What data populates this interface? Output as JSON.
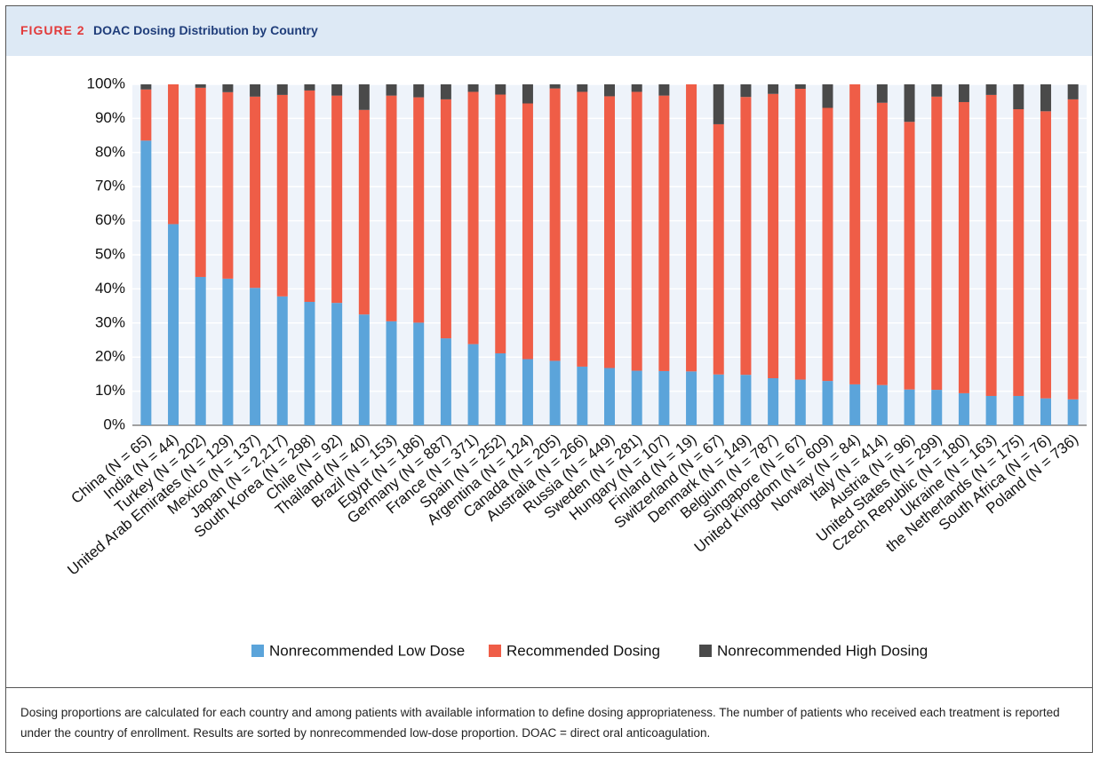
{
  "header": {
    "label": "FIGURE 2"
  },
  "chart_data": {
    "type": "stacked_bar",
    "title": "DOAC Dosing Distribution by Country",
    "categories": [
      "China (N = 65)",
      "India (N = 44)",
      "Turkey (N = 202)",
      "United Arab Emirates (N = 129)",
      "Mexico (N = 137)",
      "Japan (N = 2,217)",
      "South Korea (N = 298)",
      "Chile (N = 92)",
      "Thailand (N = 40)",
      "Brazil (N = 153)",
      "Egypt (N = 186)",
      "Germany (N = 887)",
      "France (N = 371)",
      "Spain (N = 252)",
      "Argentina (N = 124)",
      "Canada (N = 205)",
      "Australia (N = 266)",
      "Russia (N = 449)",
      "Sweden (N = 281)",
      "Hungary (N = 107)",
      "Finland (N = 19)",
      "Switzerland (N = 67)",
      "Denmark (N = 149)",
      "Belgium (N = 787)",
      "Singapore (N = 67)",
      "United Kingdom (N = 609)",
      "Norway (N = 84)",
      "Italy (N = 414)",
      "Austria (N = 96)",
      "United States (N = 299)",
      "Czech Republic (N = 180)",
      "Ukraine (N = 163)",
      "the Netherlands (N = 175)",
      "South Africa (N = 76)",
      "Poland (N = 736)"
    ],
    "series": [
      {
        "name": "Nonrecommended Low Dose",
        "color": "#5ba4da",
        "values": [
          83.5,
          59,
          43.5,
          43,
          40.3,
          37.8,
          36.2,
          35.9,
          32.5,
          30.5,
          30.1,
          25.5,
          23.8,
          21.1,
          19.4,
          18.9,
          17.2,
          16.8,
          16,
          15.9,
          15.8,
          14.9,
          14.8,
          13.8,
          13.4,
          13,
          12,
          11.8,
          10.5,
          10.4,
          9.4,
          8.6,
          8.6,
          7.9,
          7.6
        ]
      },
      {
        "name": "Recommended Dosing",
        "color": "#ef5d47",
        "values": [
          15,
          41,
          55.5,
          54.7,
          56.1,
          59.1,
          62,
          60.8,
          60,
          66.2,
          66.1,
          70.1,
          74,
          75.9,
          75,
          79.9,
          80.6,
          79.7,
          81.8,
          80.8,
          84.2,
          73.4,
          81.5,
          83.4,
          85.3,
          80.1,
          88,
          82.8,
          78.5,
          86,
          85.4,
          88.3,
          84.1,
          84.2,
          88
        ]
      },
      {
        "name": "Nonrecommended High Dosing",
        "color": "#4a4a4a",
        "values": [
          1.5,
          0,
          1,
          2.3,
          3.6,
          3.1,
          1.8,
          3.3,
          7.5,
          3.3,
          3.8,
          4.4,
          2.2,
          3,
          5.6,
          1.2,
          2.2,
          3.5,
          2.2,
          3.3,
          0,
          11.7,
          3.7,
          2.8,
          1.3,
          6.9,
          0,
          5.4,
          11,
          3.6,
          5.2,
          3.1,
          7.3,
          7.9,
          4.4
        ]
      }
    ],
    "ylim": [
      0,
      100
    ],
    "yticks": [
      {
        "value": 0,
        "label": "0%"
      },
      {
        "value": 10,
        "label": "10%"
      },
      {
        "value": 20,
        "label": "20%"
      },
      {
        "value": 30,
        "label": "30%"
      },
      {
        "value": 40,
        "label": "40%"
      },
      {
        "value": 50,
        "label": "50%"
      },
      {
        "value": 60,
        "label": "60%"
      },
      {
        "value": 70,
        "label": "70%"
      },
      {
        "value": 80,
        "label": "80%"
      },
      {
        "value": 90,
        "label": "90%"
      },
      {
        "value": 100,
        "label": "100%"
      }
    ],
    "grid": true
  },
  "caption": "Dosing proportions are calculated for each country and among patients with available information to define dosing appropriateness. The number of patients who received each treatment is reported under the country of enrollment. Results are sorted by nonrecommended low-dose proportion. DOAC = direct oral anticoagulation."
}
